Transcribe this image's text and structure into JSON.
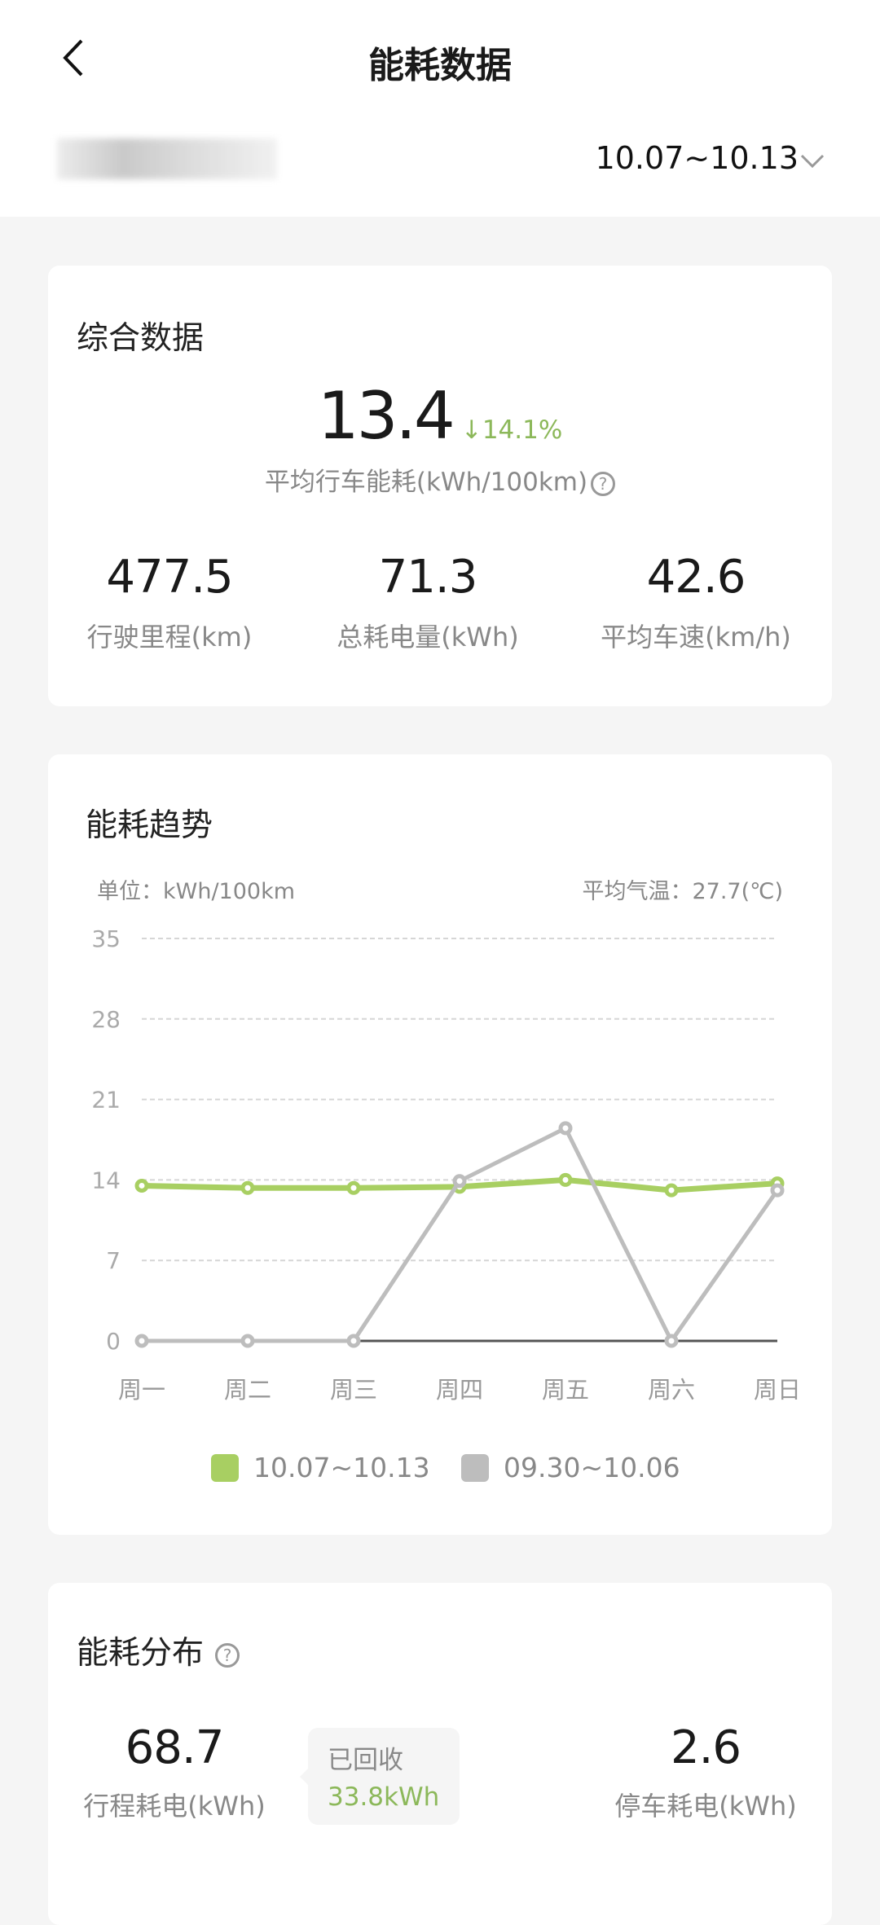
{
  "header": {
    "title": "能耗数据",
    "date_range": "10.07~10.13"
  },
  "summary": {
    "title": "综合数据",
    "avg_consumption": "13.4",
    "change": "14.1%",
    "change_direction": "down",
    "avg_label": "平均行车能耗(kWh/100km)",
    "stats": [
      {
        "value": "477.5",
        "label": "行驶里程(km)"
      },
      {
        "value": "71.3",
        "label": "总耗电量(kWh)"
      },
      {
        "value": "42.6",
        "label": "平均车速(km/h)"
      }
    ]
  },
  "trend": {
    "title": "能耗趋势",
    "unit": "单位：kWh/100km",
    "temp": "平均气温：27.7(℃)"
  },
  "chart_data": {
    "type": "line",
    "categories": [
      "周一",
      "周二",
      "周三",
      "周四",
      "周五",
      "周六",
      "周日"
    ],
    "ylim": [
      0,
      35
    ],
    "yticks": [
      "0",
      "7",
      "14",
      "21",
      "28",
      "35"
    ],
    "grid": true,
    "legend": "bottom",
    "series": [
      {
        "name": "10.07~10.13",
        "color": "#a8cf62",
        "values": [
          13.5,
          13.3,
          13.3,
          13.4,
          14.0,
          13.1,
          13.7
        ]
      },
      {
        "name": "09.30~10.06",
        "color": "#bdbdbd",
        "values": [
          0,
          0,
          0,
          13.9,
          18.5,
          0,
          13.1
        ]
      }
    ]
  },
  "distribution": {
    "title": "能耗分布",
    "trip_value": "68.7",
    "trip_label": "行程耗电(kWh)",
    "recovered_label": "已回收",
    "recovered_value": "33.8kWh",
    "park_value": "2.6",
    "park_label": "停车耗电(kWh)"
  }
}
